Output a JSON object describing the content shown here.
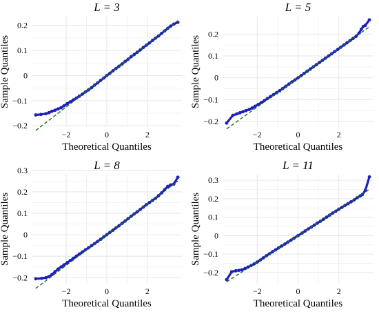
{
  "figure": {
    "colors": {
      "points": "#1f1fbf",
      "reference_line": "#1a6e1a",
      "grid": "#e6e6e6"
    }
  },
  "chart_data": [
    {
      "type": "scatter",
      "title": "L = 3",
      "xlabel": "Theoretical Quantiles",
      "ylabel": "Sample Quantiles",
      "xlim": [
        -3.7,
        3.7
      ],
      "ylim": [
        -0.205,
        0.235
      ],
      "xticks": [
        -2,
        0,
        2
      ],
      "xticklabels": [
        "−2",
        "0",
        "2"
      ],
      "yticks": [
        -0.2,
        -0.1,
        0,
        0.1,
        0.2
      ],
      "yticklabels": [
        "−0.2",
        "−0.1",
        "0",
        "0.1",
        "0.2"
      ],
      "grid": true,
      "reference_line": {
        "slope": 0.0625,
        "intercept": 0.0
      },
      "points": [
        [
          -3.5,
          -0.157
        ],
        [
          -3.25,
          -0.155
        ],
        [
          -3.0,
          -0.152
        ],
        [
          -2.85,
          -0.148
        ],
        [
          -2.7,
          -0.142
        ],
        [
          -2.55,
          -0.138
        ],
        [
          -2.4,
          -0.133
        ],
        [
          -2.25,
          -0.128
        ],
        [
          -2.1,
          -0.12
        ],
        [
          -1.95,
          -0.112
        ],
        [
          -1.8,
          -0.105
        ],
        [
          -1.65,
          -0.097
        ],
        [
          -1.5,
          -0.09
        ],
        [
          -1.35,
          -0.082
        ],
        [
          -1.2,
          -0.074
        ],
        [
          -1.05,
          -0.065
        ],
        [
          -0.9,
          -0.057
        ],
        [
          -0.75,
          -0.048
        ],
        [
          -0.6,
          -0.038
        ],
        [
          -0.45,
          -0.029
        ],
        [
          -0.3,
          -0.019
        ],
        [
          -0.15,
          -0.01
        ],
        [
          0.0,
          0.0
        ],
        [
          0.15,
          0.009
        ],
        [
          0.3,
          0.019
        ],
        [
          0.45,
          0.028
        ],
        [
          0.6,
          0.037
        ],
        [
          0.75,
          0.046
        ],
        [
          0.9,
          0.056
        ],
        [
          1.05,
          0.065
        ],
        [
          1.2,
          0.075
        ],
        [
          1.35,
          0.084
        ],
        [
          1.5,
          0.093
        ],
        [
          1.65,
          0.102
        ],
        [
          1.8,
          0.112
        ],
        [
          1.95,
          0.121
        ],
        [
          2.1,
          0.13
        ],
        [
          2.25,
          0.14
        ],
        [
          2.4,
          0.149
        ],
        [
          2.55,
          0.158
        ],
        [
          2.7,
          0.168
        ],
        [
          2.85,
          0.178
        ],
        [
          3.0,
          0.188
        ],
        [
          3.15,
          0.197
        ],
        [
          3.3,
          0.205
        ],
        [
          3.5,
          0.212
        ]
      ]
    },
    {
      "type": "scatter",
      "title": "L = 5",
      "xlabel": "Theoretical Quantiles",
      "ylabel": "Sample Quantiles",
      "xlim": [
        -3.7,
        3.7
      ],
      "ylim": [
        -0.225,
        0.28
      ],
      "xticks": [
        -2,
        0,
        2
      ],
      "xticklabels": [
        "−2",
        "0",
        "2"
      ],
      "yticks": [
        -0.2,
        -0.1,
        0,
        0.1,
        0.2
      ],
      "yticklabels": [
        "−0.2",
        "−0.1",
        "0",
        "0.1",
        "0.2"
      ],
      "grid": true,
      "reference_line": {
        "slope": 0.0667,
        "intercept": 0.0
      },
      "points": [
        [
          -3.5,
          -0.207
        ],
        [
          -3.2,
          -0.172
        ],
        [
          -3.0,
          -0.165
        ],
        [
          -2.85,
          -0.16
        ],
        [
          -2.7,
          -0.155
        ],
        [
          -2.55,
          -0.15
        ],
        [
          -2.4,
          -0.145
        ],
        [
          -2.25,
          -0.138
        ],
        [
          -2.1,
          -0.13
        ],
        [
          -1.95,
          -0.122
        ],
        [
          -1.8,
          -0.113
        ],
        [
          -1.65,
          -0.104
        ],
        [
          -1.5,
          -0.095
        ],
        [
          -1.35,
          -0.086
        ],
        [
          -1.2,
          -0.077
        ],
        [
          -1.05,
          -0.068
        ],
        [
          -0.9,
          -0.059
        ],
        [
          -0.75,
          -0.049
        ],
        [
          -0.6,
          -0.039
        ],
        [
          -0.45,
          -0.029
        ],
        [
          -0.3,
          -0.019
        ],
        [
          -0.15,
          -0.01
        ],
        [
          0.0,
          0.0
        ],
        [
          0.15,
          0.01
        ],
        [
          0.3,
          0.02
        ],
        [
          0.45,
          0.03
        ],
        [
          0.6,
          0.04
        ],
        [
          0.75,
          0.05
        ],
        [
          0.9,
          0.06
        ],
        [
          1.05,
          0.07
        ],
        [
          1.2,
          0.08
        ],
        [
          1.35,
          0.09
        ],
        [
          1.5,
          0.1
        ],
        [
          1.65,
          0.11
        ],
        [
          1.8,
          0.12
        ],
        [
          1.95,
          0.13
        ],
        [
          2.1,
          0.14
        ],
        [
          2.25,
          0.15
        ],
        [
          2.4,
          0.16
        ],
        [
          2.55,
          0.17
        ],
        [
          2.7,
          0.18
        ],
        [
          2.85,
          0.19
        ],
        [
          3.0,
          0.205
        ],
        [
          3.1,
          0.222
        ],
        [
          3.2,
          0.235
        ],
        [
          3.3,
          0.24
        ],
        [
          3.5,
          0.265
        ]
      ]
    },
    {
      "type": "scatter",
      "title": "L = 8",
      "xlabel": "Theoretical Quantiles",
      "ylabel": "Sample Quantiles",
      "xlim": [
        -3.7,
        3.7
      ],
      "ylim": [
        -0.228,
        0.28
      ],
      "xticks": [
        -2,
        0,
        2
      ],
      "xticklabels": [
        "−2",
        "0",
        "2"
      ],
      "yticks": [
        -0.2,
        -0.1,
        0,
        0.1,
        0.2,
        0.3
      ],
      "yticklabels": [
        "−0.2",
        "−0.1",
        "0",
        "0.1",
        "0.2",
        "0.3"
      ],
      "grid": true,
      "reference_line": {
        "slope": 0.0714,
        "intercept": 0.0
      },
      "points": [
        [
          -3.5,
          -0.205
        ],
        [
          -3.2,
          -0.203
        ],
        [
          -3.0,
          -0.2
        ],
        [
          -2.85,
          -0.195
        ],
        [
          -2.7,
          -0.185
        ],
        [
          -2.55,
          -0.172
        ],
        [
          -2.4,
          -0.16
        ],
        [
          -2.25,
          -0.15
        ],
        [
          -2.1,
          -0.14
        ],
        [
          -1.95,
          -0.13
        ],
        [
          -1.8,
          -0.12
        ],
        [
          -1.65,
          -0.11
        ],
        [
          -1.5,
          -0.1
        ],
        [
          -1.35,
          -0.09
        ],
        [
          -1.2,
          -0.08
        ],
        [
          -1.05,
          -0.07
        ],
        [
          -0.9,
          -0.061
        ],
        [
          -0.75,
          -0.051
        ],
        [
          -0.6,
          -0.041
        ],
        [
          -0.45,
          -0.031
        ],
        [
          -0.3,
          -0.021
        ],
        [
          -0.15,
          -0.01
        ],
        [
          0.0,
          0.0
        ],
        [
          0.15,
          0.011
        ],
        [
          0.3,
          0.021
        ],
        [
          0.45,
          0.032
        ],
        [
          0.6,
          0.042
        ],
        [
          0.75,
          0.053
        ],
        [
          0.9,
          0.064
        ],
        [
          1.05,
          0.075
        ],
        [
          1.2,
          0.086
        ],
        [
          1.35,
          0.097
        ],
        [
          1.5,
          0.107
        ],
        [
          1.65,
          0.118
        ],
        [
          1.8,
          0.129
        ],
        [
          1.95,
          0.14
        ],
        [
          2.1,
          0.15
        ],
        [
          2.25,
          0.16
        ],
        [
          2.4,
          0.17
        ],
        [
          2.55,
          0.182
        ],
        [
          2.7,
          0.195
        ],
        [
          2.85,
          0.21
        ],
        [
          3.0,
          0.225
        ],
        [
          3.15,
          0.232
        ],
        [
          3.3,
          0.236
        ],
        [
          3.5,
          0.268
        ]
      ]
    },
    {
      "type": "scatter",
      "title": "L = 11",
      "xlabel": "Theoretical Quantiles",
      "ylabel": "Sample Quantiles",
      "xlim": [
        -3.7,
        3.7
      ],
      "ylim": [
        -0.26,
        0.33
      ],
      "xticks": [
        -2,
        0,
        2
      ],
      "xticklabels": [
        "−2",
        "0",
        "2"
      ],
      "yticks": [
        -0.2,
        -0.1,
        0,
        0.1,
        0.2,
        0.3
      ],
      "yticklabels": [
        "−0.2",
        "−0.1",
        "0",
        "0.1",
        "0.2",
        "0.3"
      ],
      "grid": true,
      "reference_line": {
        "slope": 0.0714,
        "intercept": 0.0
      },
      "points": [
        [
          -3.5,
          -0.238
        ],
        [
          -3.25,
          -0.195
        ],
        [
          -3.05,
          -0.19
        ],
        [
          -2.9,
          -0.188
        ],
        [
          -2.75,
          -0.185
        ],
        [
          -2.6,
          -0.178
        ],
        [
          -2.45,
          -0.17
        ],
        [
          -2.3,
          -0.162
        ],
        [
          -2.15,
          -0.153
        ],
        [
          -2.0,
          -0.143
        ],
        [
          -1.85,
          -0.132
        ],
        [
          -1.7,
          -0.12
        ],
        [
          -1.55,
          -0.109
        ],
        [
          -1.4,
          -0.098
        ],
        [
          -1.25,
          -0.087
        ],
        [
          -1.1,
          -0.077
        ],
        [
          -0.95,
          -0.066
        ],
        [
          -0.8,
          -0.056
        ],
        [
          -0.65,
          -0.046
        ],
        [
          -0.5,
          -0.035
        ],
        [
          -0.35,
          -0.025
        ],
        [
          -0.2,
          -0.014
        ],
        [
          0.0,
          0.0
        ],
        [
          0.2,
          0.014
        ],
        [
          0.35,
          0.025
        ],
        [
          0.5,
          0.036
        ],
        [
          0.65,
          0.046
        ],
        [
          0.8,
          0.057
        ],
        [
          0.95,
          0.068
        ],
        [
          1.1,
          0.078
        ],
        [
          1.25,
          0.089
        ],
        [
          1.4,
          0.1
        ],
        [
          1.55,
          0.111
        ],
        [
          1.7,
          0.122
        ],
        [
          1.85,
          0.132
        ],
        [
          2.0,
          0.143
        ],
        [
          2.15,
          0.153
        ],
        [
          2.3,
          0.163
        ],
        [
          2.45,
          0.173
        ],
        [
          2.6,
          0.183
        ],
        [
          2.75,
          0.193
        ],
        [
          2.9,
          0.205
        ],
        [
          3.05,
          0.215
        ],
        [
          3.15,
          0.222
        ],
        [
          3.3,
          0.245
        ],
        [
          3.5,
          0.318
        ]
      ]
    }
  ]
}
